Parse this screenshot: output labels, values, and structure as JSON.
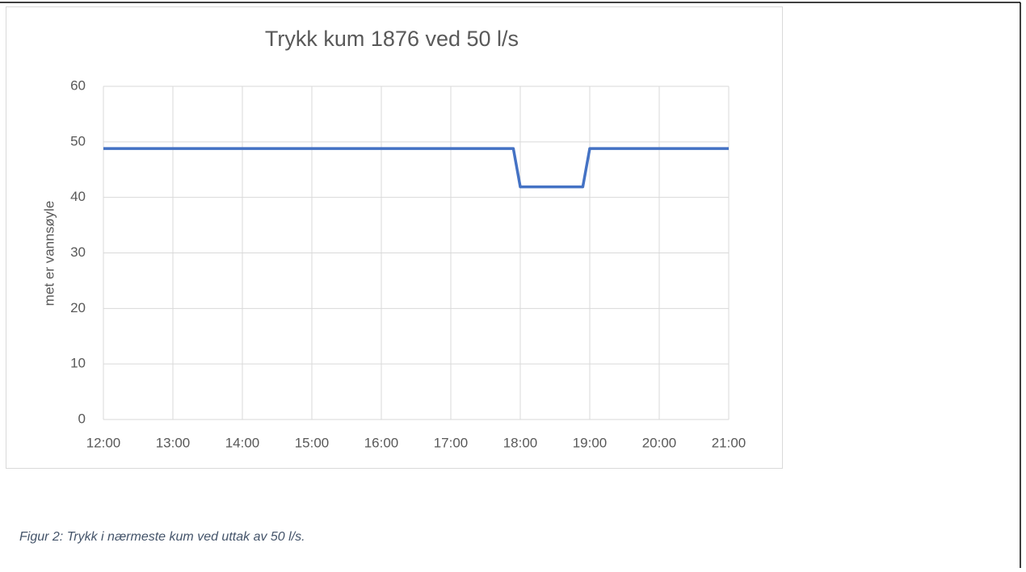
{
  "chart_data": {
    "type": "line",
    "title": "Trykk kum 1876 ved 50 l/s",
    "y_label": "met er vannsøyle",
    "x": [
      12,
      17.9,
      18,
      18.9,
      19,
      21
    ],
    "series": [
      {
        "name": null,
        "color": "#4472c4",
        "values": [
          48.8,
          48.8,
          41.9,
          41.9,
          48.8,
          48.8
        ]
      }
    ],
    "xlim": [
      12,
      21
    ],
    "xticks": [
      {
        "value": 12,
        "label": "12:00"
      },
      {
        "value": 13,
        "label": "13:00"
      },
      {
        "value": 14,
        "label": "14:00"
      },
      {
        "value": 15,
        "label": "15:00"
      },
      {
        "value": 16,
        "label": "16:00"
      },
      {
        "value": 17,
        "label": "17:00"
      },
      {
        "value": 18,
        "label": "18:00"
      },
      {
        "value": 19,
        "label": "19:00"
      },
      {
        "value": 20,
        "label": "20:00"
      },
      {
        "value": 21,
        "label": "21:00"
      }
    ],
    "ylim": [
      0,
      60
    ],
    "yticks": [
      0,
      10,
      20,
      30,
      40,
      50,
      60
    ],
    "grid": true
  },
  "caption": "Figur 2: Trykk i nærmeste kum ved uttak av 50 l/s."
}
